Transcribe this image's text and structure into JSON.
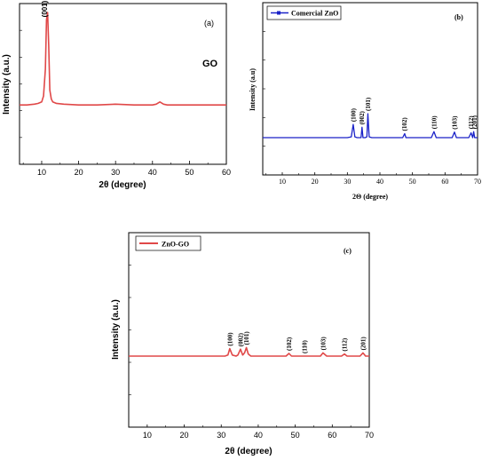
{
  "chart_data": [
    {
      "panel": "(a)",
      "type": "line",
      "xlabel": "2θ (degree)",
      "ylabel": "Intensity (a.u.)",
      "xlim": [
        4,
        60
      ],
      "xticks": [
        10,
        20,
        30,
        40,
        50,
        60
      ],
      "series": [
        {
          "name": "GO",
          "color": "#e04848",
          "x": [
            4,
            6,
            8,
            9,
            10,
            10.5,
            11,
            11.3,
            11.6,
            11.9,
            12.2,
            12.6,
            13,
            14,
            16,
            20,
            25,
            30,
            35,
            40,
            41,
            42,
            43,
            44,
            50,
            55,
            60
          ],
          "y": [
            0.38,
            0.38,
            0.385,
            0.39,
            0.4,
            0.44,
            0.62,
            0.95,
            1.0,
            0.78,
            0.48,
            0.42,
            0.4,
            0.39,
            0.385,
            0.38,
            0.38,
            0.385,
            0.38,
            0.38,
            0.385,
            0.4,
            0.385,
            0.38,
            0.38,
            0.38,
            0.38
          ]
        }
      ],
      "annotations": [
        {
          "text": "(001)",
          "x": 11.5
        }
      ]
    },
    {
      "panel": "(b)",
      "type": "line",
      "xlabel": "2Θ (degree)",
      "ylabel": "Intensity (a.u)",
      "xlim": [
        4,
        70
      ],
      "xticks": [
        10,
        20,
        30,
        40,
        50,
        60,
        70
      ],
      "legend": "top-left",
      "series": [
        {
          "name": "Comercial ZnO",
          "color": "#1a22c8",
          "x": [
            4,
            30,
            31.2,
            31.8,
            32.3,
            33,
            34.2,
            34.5,
            34.8,
            35.5,
            36,
            36.3,
            36.7,
            37.5,
            47,
            47.6,
            48,
            55.8,
            56.6,
            57.3,
            62.2,
            62.9,
            63.5,
            67.3,
            68,
            68.5,
            68.8,
            69.1,
            69.5,
            70
          ],
          "y": [
            0.0,
            0.0,
            0.02,
            0.33,
            0.02,
            0.0,
            0.0,
            0.26,
            0.0,
            0.0,
            0.02,
            0.6,
            0.02,
            0.0,
            0.0,
            0.1,
            0.0,
            0.0,
            0.15,
            0.0,
            0.0,
            0.14,
            0.0,
            0.0,
            0.12,
            0.0,
            0.15,
            0.0,
            0.0,
            0.0
          ]
        }
      ],
      "annotations": [
        {
          "text": "(100)",
          "x": 31.8
        },
        {
          "text": "(002)",
          "x": 34.4
        },
        {
          "text": "(101)",
          "x": 36.3
        },
        {
          "text": "(102)",
          "x": 47.5
        },
        {
          "text": "(110)",
          "x": 56.6
        },
        {
          "text": "(103)",
          "x": 62.9
        },
        {
          "text": "(112)",
          "x": 67.9
        },
        {
          "text": "(201)",
          "x": 69.1
        }
      ]
    },
    {
      "panel": "(c)",
      "type": "line",
      "xlabel": "2θ (degree)",
      "ylabel": "Intensity (a.u.)",
      "xlim": [
        5,
        70
      ],
      "xticks": [
        10,
        20,
        30,
        40,
        50,
        60,
        70
      ],
      "legend": "top-left",
      "series": [
        {
          "name": "ZnO-GO",
          "color": "#e04848",
          "x": [
            5,
            10,
            20,
            28,
            31,
            31.8,
            32.3,
            33,
            34,
            34.5,
            35.2,
            35.8,
            36.3,
            36.8,
            37.3,
            38,
            40,
            47.5,
            48.3,
            49,
            55,
            56.8,
            57.5,
            58.5,
            62.5,
            63.3,
            64,
            67.5,
            68.3,
            69,
            70
          ],
          "y": [
            0.0,
            0.0,
            0.0,
            0.0,
            0.0,
            0.02,
            0.14,
            0.02,
            0.0,
            0.02,
            0.13,
            0.02,
            0.06,
            0.16,
            0.04,
            0.0,
            0.0,
            0.0,
            0.05,
            0.0,
            0.0,
            0.0,
            0.06,
            0.0,
            0.0,
            0.04,
            0.0,
            0.0,
            0.06,
            0.0,
            0.0
          ]
        }
      ],
      "annotations": [
        {
          "text": "(100)",
          "x": 32.3
        },
        {
          "text": "(002)",
          "x": 35.2
        },
        {
          "text": "(101)",
          "x": 36.8
        },
        {
          "text": "(102)",
          "x": 48.3
        },
        {
          "text": "(110)",
          "x": 52.5
        },
        {
          "text": "(103)",
          "x": 57.5
        },
        {
          "text": "(112)",
          "x": 63.3
        },
        {
          "text": "(201)",
          "x": 68.3
        }
      ]
    }
  ]
}
